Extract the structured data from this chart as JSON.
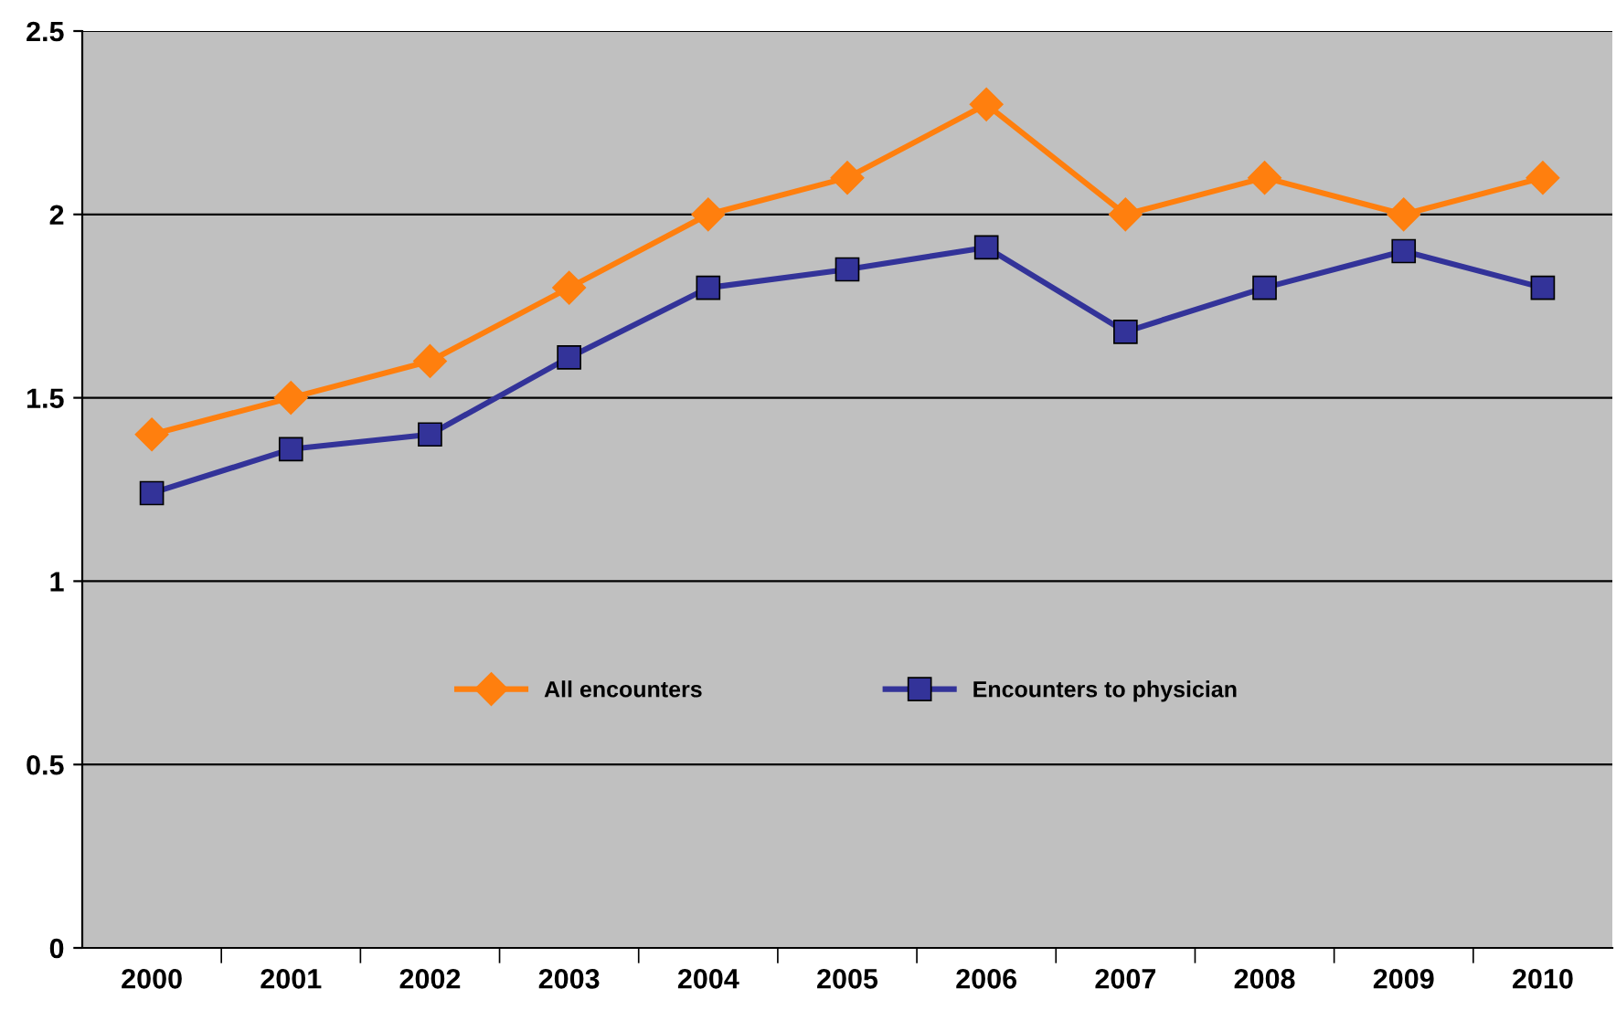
{
  "chart_data": {
    "type": "line",
    "categories": [
      "2000",
      "2001",
      "2002",
      "2003",
      "2004",
      "2005",
      "2006",
      "2007",
      "2008",
      "2009",
      "2010"
    ],
    "series": [
      {
        "name": "All encounters",
        "color": "#ff7f0e",
        "marker": "diamond",
        "values": [
          1.4,
          1.5,
          1.6,
          1.8,
          2.0,
          2.1,
          2.3,
          2.0,
          2.1,
          2.0,
          2.1
        ]
      },
      {
        "name": "Encounters to physician",
        "color": "#333399",
        "marker": "square",
        "values": [
          1.24,
          1.36,
          1.4,
          1.61,
          1.8,
          1.85,
          1.91,
          1.68,
          1.8,
          1.9,
          1.8
        ]
      }
    ],
    "ylim": [
      0,
      2.5
    ],
    "yticks": [
      0,
      0.5,
      1,
      1.5,
      2,
      2.5
    ],
    "grid": "y",
    "legend": "center",
    "line_style": "solid"
  }
}
